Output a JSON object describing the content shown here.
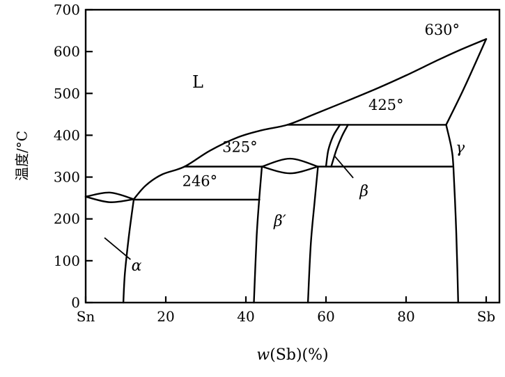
{
  "chart_data": {
    "type": "line",
    "title": "",
    "xlabel": "w(Sb)(%)",
    "xlabel_italic": "w",
    "xlabel_rest": "(Sb)(%)",
    "ylabel": "温度/°C",
    "xlim": [
      0,
      100
    ],
    "ylim": [
      0,
      700
    ],
    "grid": false,
    "line_color": "#000000",
    "background": "#ffffff",
    "y_ticks": [
      0,
      100,
      200,
      300,
      400,
      500,
      600,
      700
    ],
    "x_ticks": [
      {
        "value": 0,
        "label": "Sn"
      },
      {
        "value": 20,
        "label": "20"
      },
      {
        "value": 40,
        "label": "40"
      },
      {
        "value": 60,
        "label": "60"
      },
      {
        "value": 80,
        "label": "80"
      },
      {
        "value": 100,
        "label": "Sb"
      }
    ],
    "phase_labels": [
      {
        "text": "L",
        "x": 28,
        "y": 527,
        "italic": false,
        "big": true
      },
      {
        "text": "α",
        "x": 12.7,
        "y": 90,
        "italic": true,
        "big": false
      },
      {
        "text": "β′",
        "x": 48.5,
        "y": 196,
        "italic": true,
        "big": false
      },
      {
        "text": "β",
        "x": 69.5,
        "y": 268,
        "italic": true,
        "big": false
      },
      {
        "text": "γ",
        "x": 93.5,
        "y": 372,
        "italic": true,
        "big": false
      }
    ],
    "temperature_annotations": [
      {
        "text": "630°",
        "x": 89,
        "y": 652
      },
      {
        "text": "425°",
        "x": 75,
        "y": 472
      },
      {
        "text": "325°",
        "x": 38.5,
        "y": 372
      },
      {
        "text": "246°",
        "x": 28.5,
        "y": 290
      }
    ],
    "curves": [
      {
        "name": "liquidus",
        "smooth": true,
        "points": [
          [
            12,
            247
          ],
          [
            15,
            280
          ],
          [
            19,
            306
          ],
          [
            24.7,
            325
          ],
          [
            31,
            363
          ],
          [
            38,
            395
          ],
          [
            44,
            412
          ],
          [
            50.4,
            425
          ],
          [
            57,
            450
          ],
          [
            65,
            481
          ],
          [
            73,
            513
          ],
          [
            80,
            543
          ],
          [
            88,
            580
          ],
          [
            94,
            606
          ],
          [
            100,
            630
          ]
        ]
      },
      {
        "name": "tin-lens-upper",
        "smooth": true,
        "points": [
          [
            0,
            253
          ],
          [
            6,
            263
          ],
          [
            12,
            247
          ]
        ]
      },
      {
        "name": "tin-lens-lower",
        "smooth": true,
        "points": [
          [
            0,
            253
          ],
          [
            6,
            240
          ],
          [
            12,
            247
          ]
        ]
      },
      {
        "name": "alpha-solvus",
        "smooth": true,
        "points": [
          [
            12,
            246
          ],
          [
            10.8,
            160
          ],
          [
            9.8,
            70
          ],
          [
            9.4,
            0
          ]
        ]
      },
      {
        "name": "peritectic-246",
        "smooth": false,
        "points": [
          [
            12,
            246
          ],
          [
            43.4,
            246
          ]
        ]
      },
      {
        "name": "peritectic-325-left",
        "smooth": false,
        "points": [
          [
            24.7,
            325
          ],
          [
            44,
            325
          ]
        ]
      },
      {
        "name": "betaprime-lens-upper",
        "smooth": true,
        "points": [
          [
            44,
            325
          ],
          [
            51,
            344
          ],
          [
            58,
            325
          ]
        ]
      },
      {
        "name": "betaprime-lens-lower",
        "smooth": true,
        "points": [
          [
            44,
            325
          ],
          [
            51,
            309
          ],
          [
            58,
            325
          ]
        ]
      },
      {
        "name": "isotherm-325-right",
        "smooth": false,
        "points": [
          [
            58,
            325
          ],
          [
            91.5,
            325
          ]
        ]
      },
      {
        "name": "betaprime-left-boundary",
        "smooth": true,
        "points": [
          [
            42,
            0
          ],
          [
            42.7,
            160
          ],
          [
            43.4,
            255
          ],
          [
            44,
            325
          ]
        ]
      },
      {
        "name": "betaprime-right-boundary",
        "smooth": true,
        "points": [
          [
            55.5,
            0
          ],
          [
            56.2,
            140
          ],
          [
            57.2,
            245
          ],
          [
            58,
            325
          ]
        ]
      },
      {
        "name": "beta-left-boundary",
        "smooth": true,
        "points": [
          [
            60,
            325
          ],
          [
            60.6,
            365
          ],
          [
            61.8,
            398
          ],
          [
            63.5,
            425
          ]
        ]
      },
      {
        "name": "beta-right-boundary",
        "smooth": true,
        "points": [
          [
            61.3,
            325
          ],
          [
            62.6,
            365
          ],
          [
            64,
            398
          ],
          [
            65.5,
            425
          ]
        ]
      },
      {
        "name": "peritectic-425",
        "smooth": false,
        "points": [
          [
            50.4,
            425
          ],
          [
            90,
            425
          ]
        ]
      },
      {
        "name": "gamma-solvus",
        "smooth": true,
        "points": [
          [
            90,
            425
          ],
          [
            91.3,
            370
          ],
          [
            91.8,
            325
          ],
          [
            92.4,
            200
          ],
          [
            92.8,
            80
          ],
          [
            93,
            0
          ]
        ]
      },
      {
        "name": "gamma-solidus",
        "smooth": true,
        "points": [
          [
            90,
            425
          ],
          [
            94.6,
            515
          ],
          [
            100,
            630
          ]
        ]
      }
    ],
    "leader_lines": [
      {
        "name": "alpha-leader-line",
        "points": [
          [
            4.7,
            155
          ],
          [
            11.2,
            103
          ]
        ]
      },
      {
        "name": "beta-leader-line",
        "points": [
          [
            62,
            352
          ],
          [
            66.8,
            298
          ]
        ]
      }
    ]
  }
}
